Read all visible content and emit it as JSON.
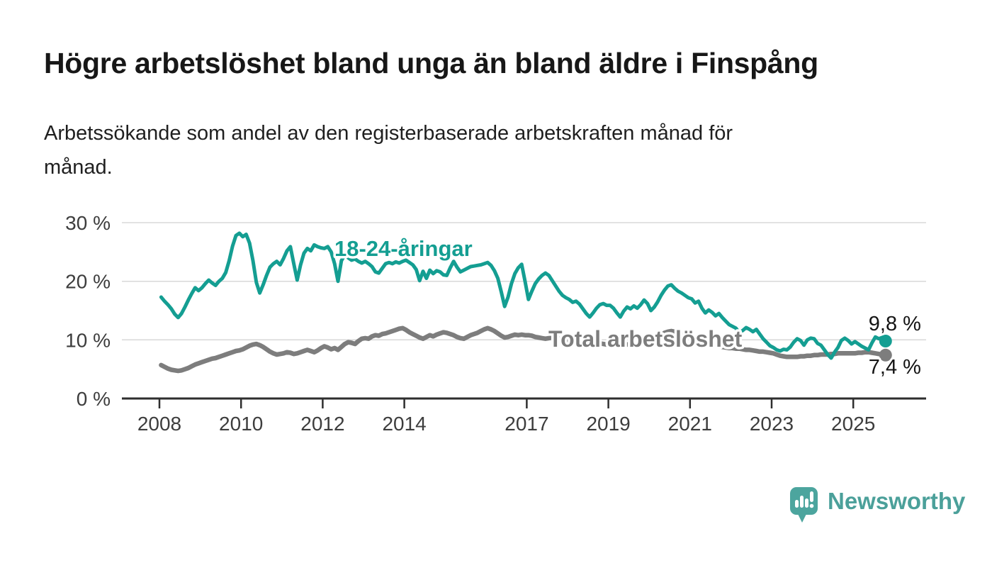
{
  "header": {
    "title": "Högre arbetslöshet bland unga än bland äldre i Finspång",
    "subtitle_lines": [
      "Arbetssökande som andel av den registerbaserade arbetskraften månad för",
      "månad."
    ]
  },
  "chart_data": {
    "type": "line",
    "frequency": "monthly",
    "x_start": "2008-01",
    "x_end": "2025-10",
    "x_tick_years": [
      2008,
      2010,
      2012,
      2014,
      2017,
      2019,
      2021,
      2023,
      2025
    ],
    "y_ticks": [
      0,
      10,
      20,
      30
    ],
    "y_unit": "%",
    "ylim": [
      0,
      30
    ],
    "grid": true,
    "legend_position": "inline-labels",
    "series": [
      {
        "name": "18-24-åringar",
        "color": "#149E92",
        "end_label": "9,8 %",
        "last_value": 9.8,
        "values": [
          17.3,
          16.6,
          16.0,
          15.3,
          14.4,
          13.8,
          14.5,
          15.6,
          16.8,
          17.9,
          18.9,
          18.4,
          18.9,
          19.6,
          20.2,
          19.7,
          19.3,
          20.0,
          20.5,
          21.5,
          23.5,
          26.0,
          27.8,
          28.2,
          27.6,
          28.0,
          26.5,
          23.5,
          19.8,
          18.0,
          19.4,
          21.0,
          22.4,
          23.0,
          23.4,
          22.8,
          23.9,
          25.2,
          25.9,
          23.0,
          20.2,
          22.8,
          24.8,
          25.6,
          25.2,
          26.2,
          25.9,
          25.7,
          25.6,
          25.9,
          25.0,
          23.0,
          20.0,
          23.5,
          24.5,
          24.0,
          23.6,
          23.8,
          23.4,
          23.1,
          23.4,
          23.0,
          22.5,
          21.6,
          21.4,
          22.2,
          23.0,
          23.2,
          23.0,
          23.3,
          23.1,
          23.4,
          23.6,
          23.2,
          22.8,
          22.0,
          20.1,
          21.7,
          20.5,
          21.9,
          21.3,
          21.8,
          21.6,
          21.1,
          21.0,
          22.3,
          23.4,
          22.4,
          21.6,
          21.9,
          22.2,
          22.5,
          22.6,
          22.7,
          22.8,
          23.0,
          23.2,
          22.7,
          21.8,
          20.5,
          18.2,
          15.7,
          17.3,
          19.6,
          21.3,
          22.3,
          22.9,
          20.0,
          16.9,
          18.3,
          19.6,
          20.4,
          21.0,
          21.4,
          21.0,
          20.1,
          19.2,
          18.3,
          17.6,
          17.2,
          16.9,
          16.4,
          16.6,
          16.1,
          15.3,
          14.5,
          13.9,
          14.6,
          15.4,
          16.0,
          16.2,
          15.9,
          15.9,
          15.4,
          14.6,
          13.9,
          14.9,
          15.6,
          15.3,
          15.8,
          15.4,
          16.0,
          16.8,
          16.2,
          15.0,
          15.6,
          16.5,
          17.6,
          18.5,
          19.2,
          19.4,
          18.8,
          18.3,
          18.0,
          17.6,
          17.2,
          17.0,
          16.3,
          16.6,
          15.4,
          14.6,
          15.1,
          14.7,
          14.1,
          14.5,
          13.8,
          13.2,
          12.6,
          12.3,
          12.0,
          11.2,
          11.6,
          12.1,
          11.8,
          11.4,
          11.8,
          11.0,
          10.2,
          9.6,
          9.0,
          8.7,
          8.3,
          8.1,
          8.4,
          8.3,
          8.8,
          9.6,
          10.2,
          9.9,
          9.1,
          10.0,
          10.3,
          10.2,
          9.4,
          9.1,
          8.3,
          7.5,
          6.9,
          7.9,
          8.7,
          9.9,
          10.3,
          9.9,
          9.3,
          9.7,
          9.3,
          8.9,
          8.6,
          8.3,
          9.5,
          10.5,
          10.2,
          10.4,
          9.8
        ]
      },
      {
        "name": "Total arbetslöshet",
        "color": "#7D7D7D",
        "end_label": "7,4 %",
        "last_value": 7.4,
        "values": [
          5.7,
          5.4,
          5.1,
          4.9,
          4.8,
          4.7,
          4.8,
          5.0,
          5.2,
          5.5,
          5.8,
          6.0,
          6.2,
          6.4,
          6.6,
          6.8,
          6.9,
          7.1,
          7.3,
          7.5,
          7.7,
          7.9,
          8.1,
          8.2,
          8.4,
          8.7,
          9.0,
          9.2,
          9.3,
          9.1,
          8.8,
          8.4,
          8.0,
          7.7,
          7.5,
          7.6,
          7.7,
          7.9,
          7.8,
          7.6,
          7.7,
          7.9,
          8.1,
          8.3,
          8.1,
          7.9,
          8.2,
          8.6,
          8.9,
          8.7,
          8.4,
          8.6,
          8.3,
          8.8,
          9.3,
          9.6,
          9.5,
          9.3,
          9.8,
          10.2,
          10.3,
          10.2,
          10.6,
          10.8,
          10.7,
          11.0,
          11.1,
          11.3,
          11.5,
          11.7,
          11.9,
          12.0,
          11.7,
          11.3,
          11.0,
          10.7,
          10.4,
          10.2,
          10.5,
          10.8,
          10.6,
          10.9,
          11.1,
          11.3,
          11.2,
          11.0,
          10.8,
          10.5,
          10.3,
          10.2,
          10.5,
          10.8,
          11.0,
          11.2,
          11.5,
          11.8,
          12.0,
          11.8,
          11.5,
          11.1,
          10.7,
          10.4,
          10.5,
          10.7,
          10.9,
          10.8,
          10.9,
          10.8,
          10.8,
          10.7,
          10.5,
          10.4,
          10.3,
          10.2,
          10.3,
          10.4,
          10.3,
          10.2,
          10.1,
          10.0,
          9.9,
          9.8,
          9.7,
          9.6,
          9.5,
          9.4,
          9.5,
          9.6,
          9.5,
          9.4,
          9.3,
          9.2,
          9.3,
          9.4,
          9.5,
          9.4,
          9.3,
          9.2,
          9.3,
          9.4,
          9.5,
          9.4,
          9.3,
          9.4,
          9.6,
          9.9,
          10.3,
          10.8,
          11.2,
          11.4,
          11.5,
          11.4,
          11.2,
          11.0,
          10.8,
          10.7,
          10.6,
          10.4,
          10.2,
          10.0,
          9.8,
          9.5,
          9.3,
          9.1,
          8.9,
          8.8,
          8.7,
          8.6,
          8.6,
          8.5,
          8.5,
          8.4,
          8.3,
          8.3,
          8.2,
          8.1,
          8.0,
          8.0,
          7.9,
          7.8,
          7.7,
          7.5,
          7.3,
          7.2,
          7.1,
          7.1,
          7.1,
          7.1,
          7.2,
          7.2,
          7.3,
          7.3,
          7.4,
          7.4,
          7.5,
          7.5,
          7.5,
          7.6,
          7.6,
          7.7,
          7.7,
          7.7,
          7.7,
          7.7,
          7.7,
          7.8,
          7.8,
          7.9,
          7.9,
          7.8,
          7.7,
          7.6,
          7.5,
          7.4
        ]
      }
    ]
  },
  "footer": {
    "brand": "Newsworthy",
    "logo_color": "#4CA59E",
    "logo_text_color": "#4BA09A"
  },
  "colors": {
    "title": "#171717",
    "subtitle": "#1f1f1f",
    "axis_text": "#3d3d3d",
    "axis_line": "#2e2e2e",
    "grid_line": "#d8d8d8",
    "value_label": "#141414",
    "label_halo": "#ffffff"
  }
}
